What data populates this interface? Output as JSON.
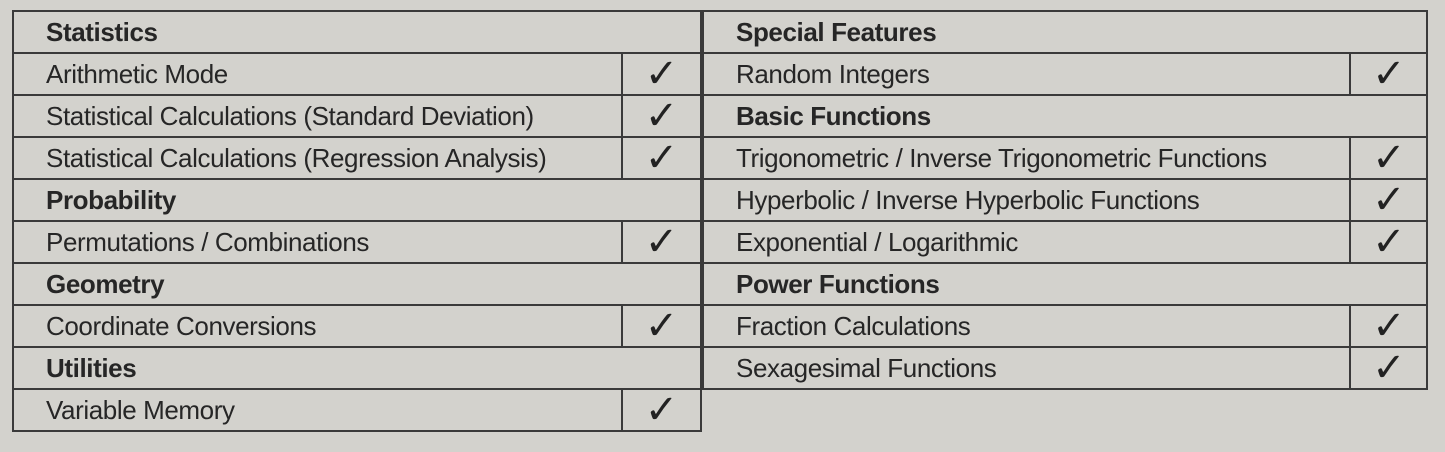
{
  "check_icon": "checkmark-icon",
  "check_glyph": "✓",
  "left_rows": [
    {
      "label": "Statistics",
      "heading": true
    },
    {
      "label": "Arithmetic Mode",
      "checked": true
    },
    {
      "label": "Statistical Calculations (Standard Deviation)",
      "checked": true
    },
    {
      "label": "Statistical Calculations (Regression Analysis)",
      "checked": true
    },
    {
      "label": "Probability",
      "heading": true
    },
    {
      "label": "Permutations / Combinations",
      "checked": true
    },
    {
      "label": "Geometry",
      "heading": true
    },
    {
      "label": "Coordinate Conversions",
      "checked": true
    },
    {
      "label": "Utilities",
      "heading": true
    },
    {
      "label": "Variable Memory",
      "checked": true
    }
  ],
  "right_rows": [
    {
      "label": "Special Features",
      "heading": true
    },
    {
      "label": "Random Integers",
      "checked": true
    },
    {
      "label": "Basic Functions",
      "heading": true
    },
    {
      "label": "Trigonometric / Inverse Trigonometric Functions",
      "checked": true
    },
    {
      "label": "Hyperbolic / Inverse Hyperbolic Functions",
      "checked": true
    },
    {
      "label": "Exponential / Logarithmic",
      "checked": true
    },
    {
      "label": "Power Functions",
      "heading": true
    },
    {
      "label": "Fraction Calculations",
      "checked": true
    },
    {
      "label": "Sexagesimal Functions",
      "checked": true
    }
  ]
}
